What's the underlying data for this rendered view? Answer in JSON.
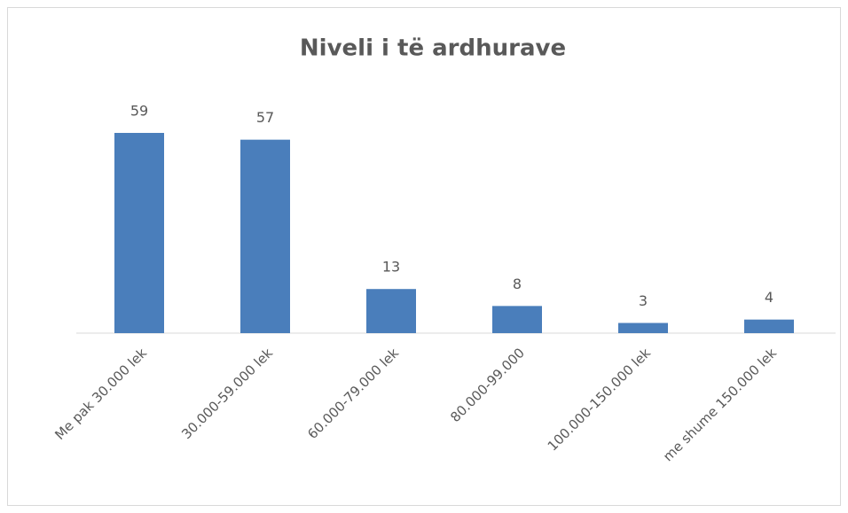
{
  "chart_data": {
    "type": "bar",
    "title": "Niveli i të ardhurave",
    "categories": [
      "Me pak 30.000 lek",
      "30.000-59.000 lek",
      "60.000-79.000 lek",
      "80.000-99.000",
      "100.000-150.000 lek",
      "me shume 150.000 lek"
    ],
    "values": [
      59,
      57,
      13,
      8,
      3,
      4
    ],
    "color": "#4a7ebb"
  }
}
